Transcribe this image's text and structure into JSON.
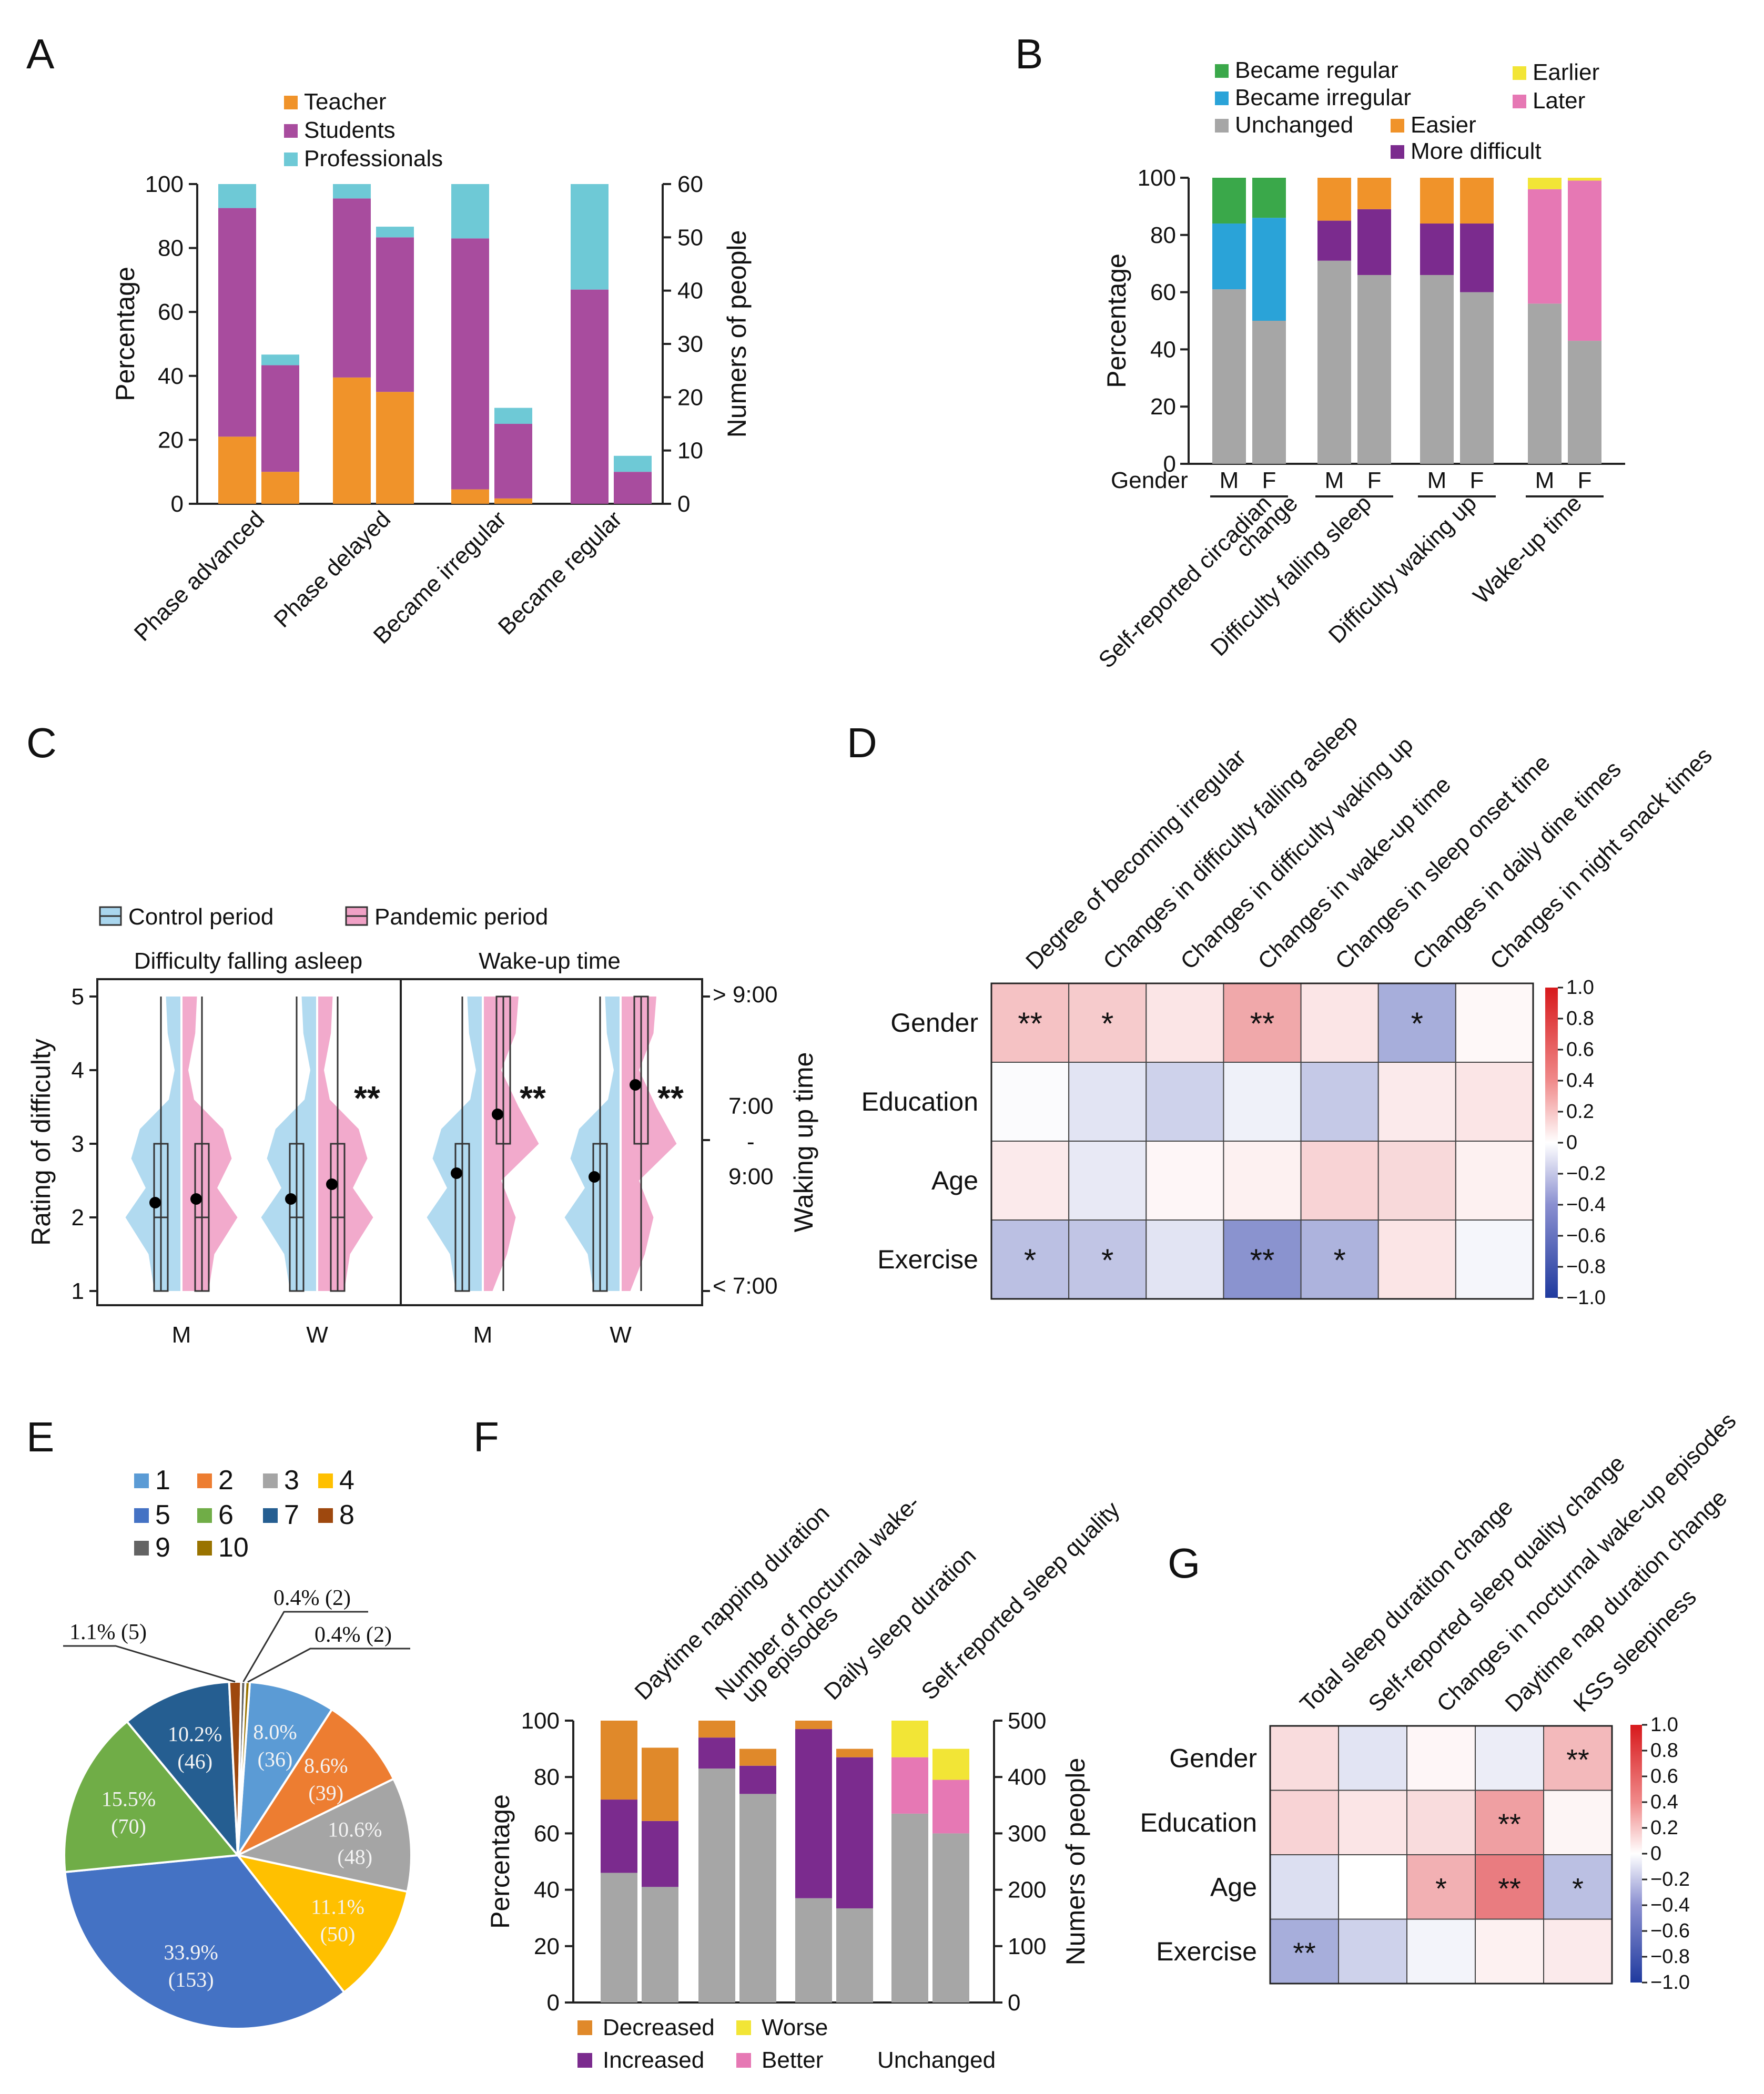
{
  "panels": {
    "A": {
      "letter": "A",
      "legend": [
        {
          "label": "Teacher",
          "color": "#f0932a"
        },
        {
          "label": "Students",
          "color": "#a84c9e"
        },
        {
          "label": "Professionals",
          "color": "#6ec9d6"
        }
      ],
      "ylabel_left": "Percentage",
      "ylabel_right": "Numers of people",
      "categories": [
        "Phase advanced",
        "Phase delayed",
        "Became irregular",
        "Became regular"
      ]
    },
    "B": {
      "letter": "B",
      "legend": [
        {
          "label": "Became regular",
          "color": "#3aa84a"
        },
        {
          "label": "Became irregular",
          "color": "#2aa3d8"
        },
        {
          "label": "Unchanged",
          "color": "#a6a6a6"
        },
        {
          "label": "Earlier",
          "color": "#f2e536"
        },
        {
          "label": "Later",
          "color": "#e678b4"
        },
        {
          "label": "Easier",
          "color": "#f0932a"
        },
        {
          "label": "More difficult",
          "color": "#7b2b8e"
        }
      ],
      "ylabel": "Percentage",
      "gender_label": "Gender",
      "sex_labels": [
        "M",
        "F"
      ],
      "categories": [
        "Self-reported circadian change",
        "Difficulty falling sleep",
        "Difficulty waking up",
        "Wake-up time"
      ]
    },
    "C": {
      "letter": "C",
      "legend": [
        {
          "label": "Control period",
          "color": "#a9d6ee"
        },
        {
          "label": "Pandemic period",
          "color": "#f1a1c6"
        }
      ],
      "subtitle_left": "Difficulty falling asleep",
      "subtitle_right": "Wake-up time",
      "ylabel_left": "Rating of difficulty",
      "ylabel_right": "Waking up time",
      "right_ticks": [
        "> 9:00",
        "7:00",
        "-",
        "9:00",
        "< 7:00"
      ],
      "x_labels": [
        "M",
        "W",
        "M",
        "W"
      ],
      "sig": [
        "**",
        "**",
        "**"
      ]
    },
    "D": {
      "letter": "D",
      "columns": [
        "Degree of becoming irregular",
        "Changes in difficulty falling asleep",
        "Changes in difficulty waking up",
        "Changes in wake-up time",
        "Changes in sleep onset time",
        "Changes in daily dine times",
        "Changes in night snack times"
      ],
      "rows": [
        "Gender",
        "Education",
        "Age",
        "Exercise"
      ],
      "colorbar_ticks": [
        "1.0",
        "0.8",
        "0.6",
        "0.4",
        "0.2",
        "0",
        "−0.2",
        "−0.4",
        "−0.6",
        "−0.8",
        "−1.0"
      ]
    },
    "E": {
      "letter": "E",
      "legend": [
        {
          "label": "1",
          "color": "#5b9bd5"
        },
        {
          "label": "2",
          "color": "#ed7d31"
        },
        {
          "label": "3",
          "color": "#a5a5a5"
        },
        {
          "label": "4",
          "color": "#ffc000"
        },
        {
          "label": "5",
          "color": "#4472c4"
        },
        {
          "label": "6",
          "color": "#70ad47"
        },
        {
          "label": "7",
          "color": "#255e91"
        },
        {
          "label": "8",
          "color": "#9e480e"
        },
        {
          "label": "9",
          "color": "#636363"
        },
        {
          "label": "10",
          "color": "#997300"
        }
      ]
    },
    "F": {
      "letter": "F",
      "ylabel_left": "Percentage",
      "ylabel_right": "Numers of people",
      "categories": [
        "Daytime napping duration",
        "Number of nocturnal wake-up episodes",
        "Daily sleep duration",
        "Self-reported sleep quality"
      ],
      "legend": [
        {
          "label": "Decreased",
          "color": "#e0892a"
        },
        {
          "label": "Worse",
          "color": "#f2e536"
        },
        {
          "label": "Increased",
          "color": "#7b2b8e"
        },
        {
          "label": "Better",
          "color": "#e678b4"
        },
        {
          "label": "Unchanged",
          "color": "#a6a6a6"
        }
      ]
    },
    "G": {
      "letter": "G",
      "columns": [
        "Total sleep duratiton change",
        "Self-reported sleep quality change",
        "Changes in nocturnal wake-up episodes",
        "Daytime nap duration change",
        "KSS sleepiness"
      ],
      "rows": [
        "Gender",
        "Education",
        "Age",
        "Exercise"
      ],
      "colorbar_ticks": [
        "1.0",
        "0.8",
        "0.6",
        "0.4",
        "0.2",
        "0",
        "−0.2",
        "−0.4",
        "−0.6",
        "−0.8",
        "−1.0"
      ]
    }
  },
  "chart_data": [
    {
      "id": "A",
      "type": "bar",
      "categories": [
        "Phase advanced",
        "Phase delayed",
        "Became irregular",
        "Became regular"
      ],
      "ylabel": "Percentage",
      "y2label": "Numers of people",
      "ylim": [
        0,
        100
      ],
      "y2lim": [
        0,
        60
      ],
      "yticks": [
        0,
        20,
        40,
        60,
        80,
        100
      ],
      "y2ticks": [
        0,
        10,
        20,
        30,
        40,
        50,
        60
      ],
      "percentage_stacks": [
        {
          "Teacher": 21,
          "Students": 71.5,
          "Professionals": 7.5
        },
        {
          "Teacher": 39.5,
          "Students": 56,
          "Professionals": 4.5
        },
        {
          "Teacher": 4.5,
          "Students": 78.5,
          "Professionals": 17
        },
        {
          "Teacher": 0,
          "Students": 67,
          "Professionals": 33
        }
      ],
      "count_stacks": [
        {
          "Teacher": 6,
          "Students": 20,
          "Professionals": 2
        },
        {
          "Teacher": 21,
          "Students": 29,
          "Professionals": 2
        },
        {
          "Teacher": 1,
          "Students": 14,
          "Professionals": 3
        },
        {
          "Teacher": 0,
          "Students": 6,
          "Professionals": 3
        }
      ]
    },
    {
      "id": "B",
      "type": "bar",
      "ylabel": "Percentage",
      "ylim": [
        0,
        100
      ],
      "yticks": [
        0,
        20,
        40,
        60,
        80,
        100
      ],
      "groups": [
        {
          "name": "Self-reported circadian change",
          "M": {
            "Unchanged": 61,
            "Became irregular": 23,
            "Became regular": 16
          },
          "F": {
            "Unchanged": 50,
            "Became irregular": 36,
            "Became regular": 14
          }
        },
        {
          "name": "Difficulty falling sleep",
          "M": {
            "Unchanged": 71,
            "More difficult": 14,
            "Easier": 15
          },
          "F": {
            "Unchanged": 66,
            "More difficult": 23,
            "Easier": 11
          }
        },
        {
          "name": "Difficulty waking up",
          "M": {
            "Unchanged": 66,
            "More difficult": 18,
            "Easier": 16
          },
          "F": {
            "Unchanged": 60,
            "More difficult": 24,
            "Easier": 16
          }
        },
        {
          "name": "Wake-up time",
          "M": {
            "Unchanged": 56,
            "Later": 40,
            "Earlier": 4
          },
          "F": {
            "Unchanged": 43,
            "Later": 56,
            "Earlier": 1
          }
        }
      ]
    },
    {
      "id": "C",
      "type": "violin",
      "groups": [
        {
          "panel": "Difficulty falling asleep",
          "sex": "M",
          "control_mean": 2.2,
          "pandemic_mean": 2.25,
          "sig": ""
        },
        {
          "panel": "Difficulty falling asleep",
          "sex": "W",
          "control_mean": 2.25,
          "pandemic_mean": 2.45,
          "sig": "**"
        },
        {
          "panel": "Wake-up time",
          "sex": "M",
          "control_mean": 2.6,
          "pandemic_mean": 3.4,
          "sig": "**"
        },
        {
          "panel": "Wake-up time",
          "sex": "W",
          "control_mean": 2.55,
          "pandemic_mean": 3.8,
          "sig": "**"
        }
      ],
      "ylim": [
        1,
        5
      ],
      "yticks": [
        1,
        2,
        3,
        4,
        5
      ]
    },
    {
      "id": "D",
      "type": "heatmap",
      "rows": [
        "Gender",
        "Education",
        "Age",
        "Exercise"
      ],
      "columns": [
        "Degree of becoming irregular",
        "Changes in difficulty falling asleep",
        "Changes in difficulty waking up",
        "Changes in wake-up time",
        "Changes in sleep onset time",
        "Changes in daily dine times",
        "Changes in night snack times"
      ],
      "values": [
        [
          0.35,
          0.3,
          0.15,
          0.5,
          0.15,
          -0.45,
          0.04
        ],
        [
          -0.02,
          -0.15,
          -0.25,
          -0.08,
          -0.3,
          0.12,
          0.15
        ],
        [
          0.12,
          -0.12,
          0.05,
          0.08,
          0.25,
          0.22,
          0.08
        ],
        [
          -0.35,
          -0.32,
          -0.15,
          -0.6,
          -0.42,
          0.15,
          -0.05
        ]
      ],
      "stars": [
        [
          "**",
          "*",
          "",
          "**",
          "",
          "*",
          ""
        ],
        [
          "",
          "",
          "",
          "",
          "",
          "",
          ""
        ],
        [
          "",
          "",
          "",
          "",
          "",
          "",
          ""
        ],
        [
          "*",
          "*",
          "",
          "**",
          "*",
          "",
          ""
        ]
      ],
      "range": [
        -1,
        1
      ]
    },
    {
      "id": "E",
      "type": "pie",
      "labels": [
        "1",
        "2",
        "3",
        "4",
        "5",
        "6",
        "7",
        "8",
        "9",
        "10"
      ],
      "percents": [
        8.0,
        8.6,
        10.6,
        11.1,
        33.9,
        15.5,
        10.2,
        1.1,
        0.4,
        0.4
      ],
      "counts": [
        36,
        39,
        48,
        50,
        153,
        70,
        46,
        5,
        2,
        2
      ],
      "slice_text_pct": [
        "8.0%",
        "8.6%",
        "10.6%",
        "11.1%",
        "33.9%",
        "15.5%",
        "10.2%",
        "1.1% (5)",
        "0.4% (2)",
        "0.4% (2)"
      ],
      "slice_text_cnt": [
        "(36)",
        "(39)",
        "(48)",
        "(50)",
        "(153)",
        "(70)",
        "(46)",
        "",
        "",
        ""
      ]
    },
    {
      "id": "F",
      "type": "bar",
      "ylabel": "Percentage",
      "y2label": "Numers of people",
      "ylim": [
        0,
        100
      ],
      "y2lim": [
        0,
        500
      ],
      "yticks": [
        0,
        20,
        40,
        60,
        80,
        100
      ],
      "y2ticks": [
        0,
        100,
        200,
        300,
        400,
        500
      ],
      "categories": [
        "Daytime napping duration",
        "Number of nocturnal wake-up episodes",
        "Daily sleep duration",
        "Self-reported sleep quality"
      ],
      "percentage_stacks": [
        {
          "Unchanged": 46,
          "Increased": 26,
          "Decreased": 28
        },
        {
          "Unchanged": 83,
          "Increased": 11,
          "Decreased": 6
        },
        {
          "Unchanged": 37,
          "Increased": 60,
          "Decreased": 3
        },
        {
          "Unchanged": 67,
          "Better": 20,
          "Worse": 13
        }
      ],
      "count_stacks": [
        {
          "Unchanged": 205,
          "Increased": 117,
          "Decreased": 130
        },
        {
          "Unchanged": 370,
          "Increased": 50,
          "Decreased": 30
        },
        {
          "Unchanged": 167,
          "Increased": 268,
          "Decreased": 15
        },
        {
          "Unchanged": 300,
          "Better": 95,
          "Worse": 55
        }
      ]
    },
    {
      "id": "G",
      "type": "heatmap",
      "rows": [
        "Gender",
        "Education",
        "Age",
        "Exercise"
      ],
      "columns": [
        "Total sleep duratiton change",
        "Self-reported sleep quality change",
        "Changes in nocturnal wake-up episodes",
        "Daytime nap duration change",
        "KSS sleepiness"
      ],
      "values": [
        [
          0.2,
          -0.15,
          0.05,
          -0.1,
          0.4
        ],
        [
          0.25,
          0.15,
          0.2,
          0.55,
          0.06
        ],
        [
          -0.18,
          0.0,
          0.45,
          0.75,
          -0.35
        ],
        [
          -0.45,
          -0.25,
          -0.06,
          0.08,
          0.12
        ]
      ],
      "stars": [
        [
          "",
          "",
          "",
          "",
          "**"
        ],
        [
          "",
          "",
          "",
          "**",
          ""
        ],
        [
          "",
          "",
          "*",
          "**",
          "*"
        ],
        [
          "**",
          "",
          "",
          "",
          ""
        ]
      ],
      "range": [
        -1,
        1
      ]
    }
  ]
}
